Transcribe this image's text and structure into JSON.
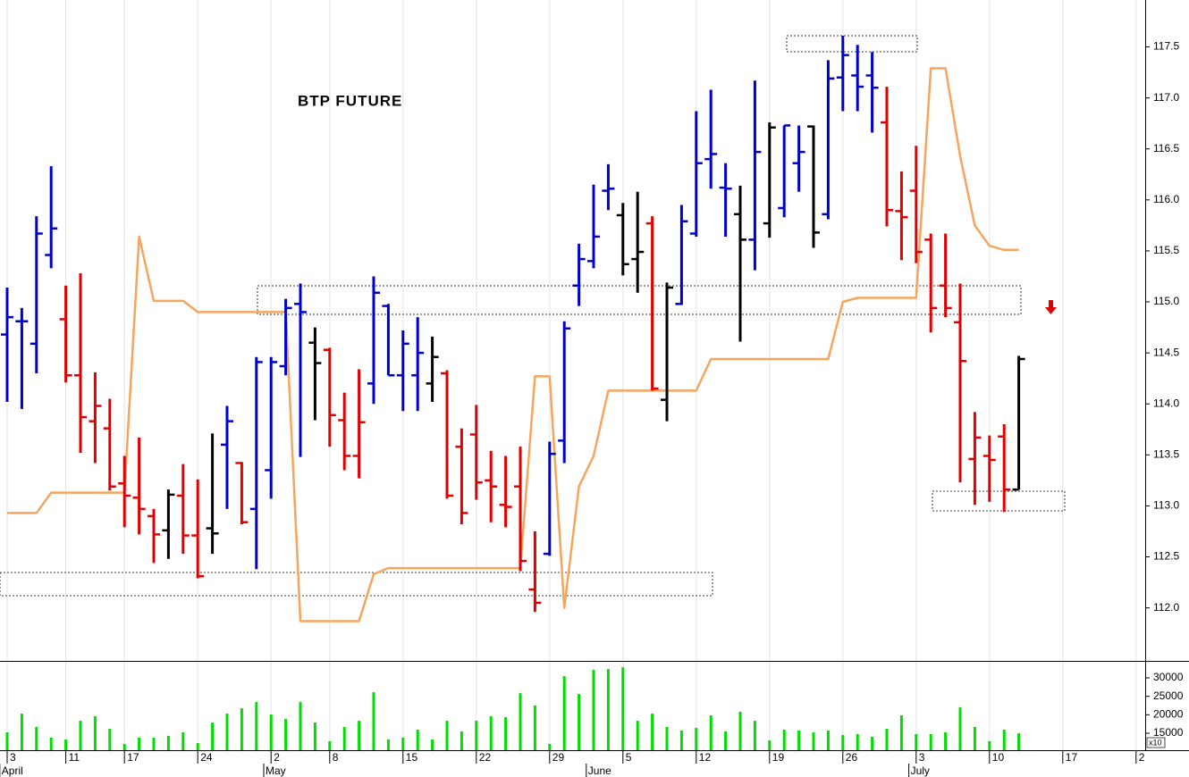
{
  "chart_data": [
    {
      "type": "ohlc",
      "title": "BTP FUTURE",
      "categories": [
        "3",
        null,
        null,
        null,
        "11",
        null,
        null,
        null,
        "17",
        null,
        null,
        null,
        null,
        "24",
        null,
        null,
        null,
        null,
        "2",
        null,
        null,
        null,
        "8",
        null,
        null,
        null,
        null,
        "15",
        null,
        null,
        null,
        null,
        "22",
        null,
        null,
        null,
        null,
        "29",
        null,
        null,
        null,
        null,
        "5",
        null,
        null,
        null,
        null,
        "12",
        null,
        null,
        null,
        null,
        "19",
        null,
        null,
        null,
        null,
        "26",
        null,
        null,
        null,
        null,
        "3",
        null,
        null,
        null,
        null,
        "10",
        null,
        null,
        null,
        null,
        "17",
        null,
        null,
        null,
        null,
        "2"
      ],
      "months": [
        "April",
        null,
        null,
        null,
        null,
        null,
        null,
        null,
        null,
        null,
        null,
        null,
        null,
        null,
        null,
        null,
        null,
        null,
        "May",
        null,
        null,
        null,
        null,
        null,
        null,
        null,
        null,
        null,
        null,
        null,
        null,
        null,
        null,
        null,
        null,
        null,
        null,
        null,
        null,
        null,
        "June",
        null,
        null,
        null,
        null,
        null,
        null,
        null,
        null,
        null,
        null,
        null,
        null,
        null,
        null,
        null,
        null,
        null,
        null,
        null,
        null,
        null,
        "July",
        null,
        null,
        null,
        null,
        null,
        null,
        null,
        null,
        null,
        null,
        null,
        null,
        null,
        null,
        null
      ],
      "open": [
        114.68,
        114.81,
        114.59,
        115.46,
        114.83,
        114.28,
        113.83,
        113.76,
        113.22,
        113.08,
        112.9,
        112.76,
        113.1,
        112.71,
        112.78,
        113.6,
        113.42,
        112.97,
        113.35,
        114.37,
        114.98,
        114.6,
        114.53,
        113.84,
        113.49,
        114.2,
        114.96,
        114.28,
        114.28,
        114.2,
        114.3,
        113.58,
        113.7,
        113.25,
        113.01,
        113.19,
        112.18,
        112.53,
        113.64,
        115.16,
        115.4,
        116.09,
        115.85,
        115.42,
        115.77,
        114.04,
        114.98,
        115.67,
        116.4,
        116.12,
        115.86,
        115.61,
        115.77,
        115.92,
        116.36,
        116.72,
        115.86,
        117.2,
        117.22,
        117.22,
        116.76,
        115.89,
        116.09,
        115.61,
        115.16,
        114.8,
        113.46,
        113.49,
        113.68,
        113.16,
        null,
        null,
        null,
        null,
        null,
        null,
        null,
        null
      ],
      "high": [
        115.14,
        114.94,
        115.84,
        116.33,
        115.16,
        115.28,
        114.31,
        114.05,
        113.49,
        113.67,
        112.97,
        113.16,
        113.41,
        113.26,
        113.71,
        113.98,
        113.43,
        114.46,
        114.46,
        115.03,
        115.18,
        114.75,
        114.55,
        114.11,
        114.34,
        115.25,
        114.98,
        114.72,
        114.85,
        114.66,
        114.33,
        113.76,
        113.99,
        113.54,
        113.49,
        113.58,
        112.75,
        113.63,
        114.81,
        115.57,
        116.15,
        116.35,
        115.97,
        116.08,
        115.84,
        115.19,
        115.95,
        116.87,
        117.08,
        116.36,
        116.14,
        117.17,
        116.76,
        116.73,
        116.73,
        116.73,
        117.37,
        117.61,
        117.52,
        117.45,
        117.11,
        116.28,
        116.53,
        115.67,
        115.67,
        115.18,
        113.92,
        113.69,
        113.8,
        114.47,
        null,
        null,
        null,
        null,
        null,
        null,
        null,
        null
      ],
      "low": [
        114.02,
        113.95,
        114.3,
        115.33,
        114.21,
        113.52,
        113.42,
        113.15,
        112.79,
        112.72,
        112.44,
        112.48,
        112.53,
        112.29,
        112.53,
        112.97,
        112.82,
        112.38,
        113.07,
        114.28,
        113.48,
        113.84,
        113.58,
        113.35,
        113.27,
        114.0,
        114.28,
        113.93,
        113.93,
        114.02,
        113.07,
        112.82,
        113.06,
        112.84,
        112.79,
        112.36,
        111.96,
        112.51,
        113.42,
        114.96,
        115.33,
        115.9,
        115.26,
        115.09,
        114.13,
        113.83,
        114.97,
        115.64,
        116.11,
        115.64,
        114.61,
        115.31,
        115.63,
        115.83,
        116.08,
        115.53,
        115.81,
        116.87,
        116.87,
        116.66,
        115.74,
        115.41,
        115.38,
        114.7,
        114.85,
        113.23,
        113.01,
        113.04,
        112.94,
        113.16,
        null,
        null,
        null,
        null,
        null,
        null,
        null,
        null
      ],
      "close": [
        114.85,
        114.81,
        115.67,
        115.72,
        114.28,
        113.87,
        113.98,
        113.19,
        113.1,
        112.97,
        112.72,
        113.11,
        112.71,
        112.31,
        112.73,
        113.83,
        112.84,
        114.41,
        114.41,
        114.94,
        114.9,
        114.4,
        113.89,
        113.49,
        113.82,
        115.09,
        114.28,
        114.59,
        114.5,
        114.46,
        113.1,
        112.93,
        113.23,
        113.19,
        112.99,
        112.46,
        112.05,
        113.51,
        114.74,
        115.42,
        115.64,
        116.11,
        115.37,
        115.49,
        114.15,
        115.14,
        115.79,
        116.36,
        116.45,
        116.11,
        115.61,
        116.47,
        116.71,
        116.73,
        116.47,
        115.68,
        117.19,
        117.42,
        117.11,
        117.1,
        115.9,
        115.83,
        115.49,
        114.94,
        114.94,
        114.42,
        113.67,
        113.45,
        113.16,
        114.44,
        null,
        null,
        null,
        null,
        null,
        null,
        null,
        null
      ],
      "colors": [
        "#0000cc",
        "#0000cc",
        "#0000cc",
        "#0000cc",
        "#e00000",
        "#e00000",
        "#e00000",
        "#e00000",
        "#e00000",
        "#e00000",
        "#e00000",
        "#000000",
        "#e00000",
        "#e00000",
        "#000000",
        "#0000cc",
        "#e00000",
        "#0000cc",
        "#0000cc",
        "#0000cc",
        "#0000cc",
        "#000000",
        "#e00000",
        "#e00000",
        "#e00000",
        "#0000cc",
        "#0000cc",
        "#0000cc",
        "#0000cc",
        "#000000",
        "#e00000",
        "#e00000",
        "#e00000",
        "#e00000",
        "#e00000",
        "#e00000",
        "#e00000",
        "#0000cc",
        "#0000cc",
        "#0000cc",
        "#0000cc",
        "#0000cc",
        "#000000",
        "#000000",
        "#e00000",
        "#000000",
        "#0000cc",
        "#0000cc",
        "#0000cc",
        "#0000cc",
        "#000000",
        "#0000cc",
        "#000000",
        "#0000cc",
        "#0000cc",
        "#000000",
        "#0000cc",
        "#0000cc",
        "#0000cc",
        "#0000cc",
        "#e00000",
        "#e00000",
        "#e00000",
        "#e00000",
        "#e00000",
        "#e00000",
        "#e00000",
        "#e00000",
        "#e00000",
        "#000000",
        null,
        null,
        null,
        null,
        null,
        null,
        null,
        null
      ],
      "line": {
        "color": "#f5a55e",
        "values": [
          112.93,
          112.93,
          112.93,
          113.13,
          113.13,
          113.13,
          113.13,
          113.13,
          113.13,
          115.64,
          115.01,
          115.01,
          115.01,
          114.9,
          114.9,
          114.9,
          114.9,
          114.9,
          114.9,
          114.9,
          111.87,
          111.87,
          111.87,
          111.87,
          111.87,
          112.33,
          112.39,
          112.39,
          112.39,
          112.39,
          112.39,
          112.39,
          112.39,
          112.39,
          112.39,
          112.39,
          114.27,
          114.27,
          112.0,
          113.19,
          113.49,
          114.13,
          114.13,
          114.13,
          114.13,
          114.13,
          114.13,
          114.13,
          114.44,
          114.44,
          114.44,
          114.44,
          114.44,
          114.44,
          114.44,
          114.44,
          114.44,
          115.0,
          115.04,
          115.04,
          115.04,
          115.04,
          115.04,
          117.29,
          117.29,
          116.43,
          115.75,
          115.55,
          115.51,
          115.51,
          null,
          null,
          null,
          null,
          null,
          null,
          null,
          null
        ]
      },
      "ylim": [
        111.48,
        117.96
      ],
      "yticks": [
        {
          "value": 112,
          "label": "112.0"
        },
        112.5,
        {
          "value": 113,
          "label": "113.0"
        },
        113.5,
        {
          "value": 114,
          "label": "114.0"
        },
        114.5,
        {
          "value": 115,
          "label": "115.0"
        },
        115.5,
        {
          "value": 116,
          "label": "116.0"
        },
        116.5,
        {
          "value": 117,
          "label": "117.0"
        },
        117.5
      ],
      "grid": true
    },
    {
      "type": "bar",
      "color": "#00dd00",
      "values": [
        15240,
        20310,
        16690,
        13790,
        13310,
        18380,
        19590,
        16210,
        12100,
        13790,
        13790,
        14280,
        15240,
        12340,
        17900,
        20310,
        21760,
        23450,
        20070,
        18860,
        23450,
        17900,
        12830,
        16690,
        18380,
        26110,
        13310,
        13790,
        15970,
        13310,
        18380,
        15480,
        18380,
        19590,
        19350,
        25870,
        22490,
        12100,
        30460,
        25630,
        32150,
        32390,
        32870,
        18380,
        20310,
        16690,
        15720,
        16450,
        19830,
        15480,
        20800,
        18380,
        13070,
        15970,
        15720,
        15240,
        15720,
        14520,
        14760,
        14030,
        16210,
        19830,
        14760,
        14760,
        15240,
        22000,
        16690,
        12830,
        15970,
        15000,
        null,
        null,
        null,
        null,
        null,
        null,
        null,
        null
      ],
      "ylim": [
        10400,
        34600
      ],
      "yticks": [
        15000,
        20000,
        25000,
        30000
      ],
      "unit_label": "x10"
    }
  ]
}
